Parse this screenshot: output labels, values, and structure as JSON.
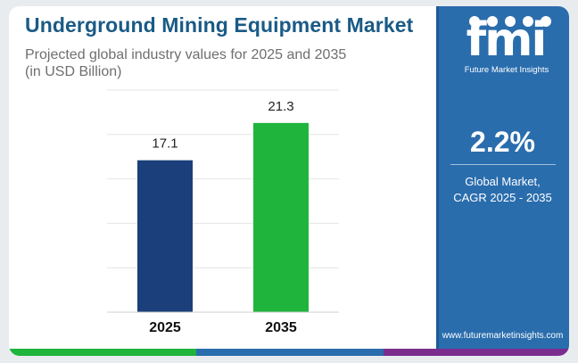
{
  "header": {
    "title": "Underground Mining Equipment Market",
    "subtitle_line1": "Projected global industry values for 2025 and 2035",
    "subtitle_line2": "(in USD Billion)"
  },
  "sidebar": {
    "logo_text": "fmi",
    "logo_caption": "Future Market Insights",
    "cagr_value": "2.2%",
    "cagr_label_line1": "Global Market,",
    "cagr_label_line2": "CAGR 2025 - 2035",
    "website": "www.futuremarketinsights.com"
  },
  "colors": {
    "title": "#1a5a86",
    "sidebar_bg": "#2a6dad",
    "bar_2025": "#1b3f7a",
    "bar_2035": "#1fb43c",
    "strip_left": "#1fb43c",
    "strip_mid": "#2a6dad",
    "strip_right": "#7b2d8e"
  },
  "chart_data": {
    "type": "bar",
    "categories": [
      "2025",
      "2035"
    ],
    "values": [
      17.1,
      21.3
    ],
    "value_labels": [
      "17.1",
      "21.3"
    ],
    "bar_colors": [
      "#1b3f7a",
      "#1fb43c"
    ],
    "ylim": [
      0,
      25
    ],
    "grid": true
  }
}
